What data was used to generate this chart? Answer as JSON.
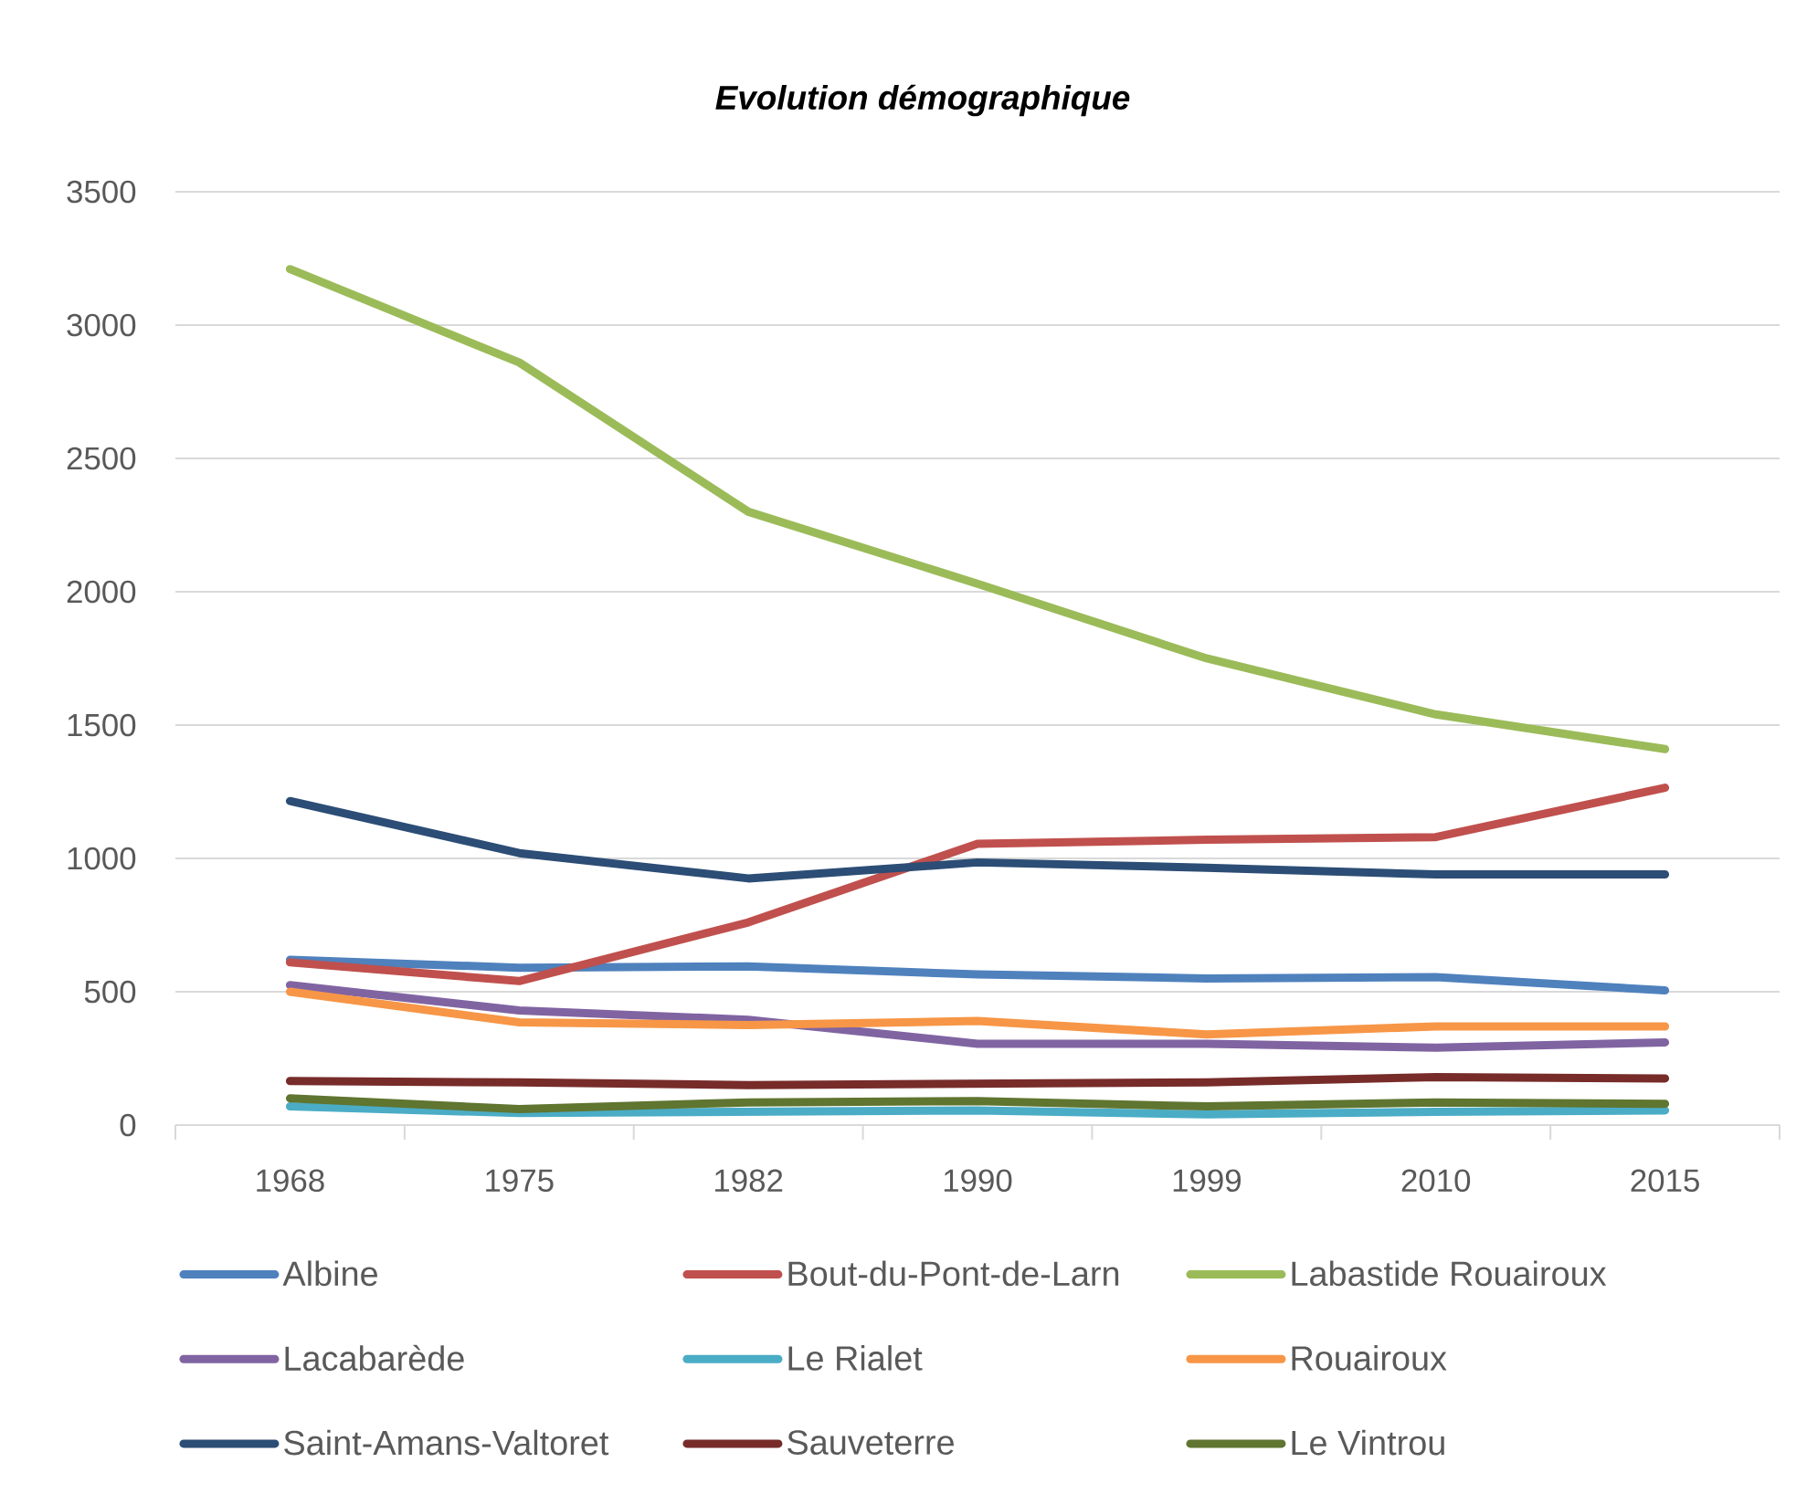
{
  "chart_data": {
    "type": "line",
    "title": "Evolution démographique",
    "categories": [
      "1968",
      "1975",
      "1982",
      "1990",
      "1999",
      "2010",
      "2015"
    ],
    "series": [
      {
        "name": "Albine",
        "color": "#4f81bd",
        "values": [
          620,
          590,
          595,
          565,
          550,
          555,
          505
        ]
      },
      {
        "name": "Bout-du-Pont-de-Larn",
        "color": "#c0504d",
        "values": [
          610,
          540,
          760,
          1055,
          1070,
          1080,
          1265
        ]
      },
      {
        "name": "Labastide Rouairoux",
        "color": "#9bbb59",
        "values": [
          3210,
          2860,
          2300,
          2030,
          1750,
          1540,
          1410
        ]
      },
      {
        "name": "Lacabarède",
        "color": "#8064a2",
        "values": [
          525,
          430,
          395,
          305,
          305,
          290,
          310
        ]
      },
      {
        "name": "Le Rialet",
        "color": "#4bacc6",
        "values": [
          70,
          45,
          50,
          55,
          40,
          50,
          55
        ]
      },
      {
        "name": "Rouairoux",
        "color": "#f79646",
        "values": [
          500,
          385,
          375,
          390,
          340,
          370,
          370
        ]
      },
      {
        "name": "Saint-Amans-Valtoret",
        "color": "#2c4d75",
        "values": [
          1215,
          1020,
          925,
          985,
          965,
          940,
          940
        ]
      },
      {
        "name": "Sauveterre",
        "color": "#772c2a",
        "values": [
          165,
          160,
          150,
          155,
          160,
          180,
          175
        ]
      },
      {
        "name": "Le Vintrou",
        "color": "#5f7530",
        "values": [
          100,
          60,
          85,
          90,
          70,
          85,
          80
        ]
      }
    ],
    "ylim": [
      0,
      3500
    ],
    "yticks": [
      0,
      500,
      1000,
      1500,
      2000,
      2500,
      3000,
      3500
    ],
    "grid": "y",
    "legend": "bottom",
    "marker": "none",
    "line_style": "solid"
  }
}
